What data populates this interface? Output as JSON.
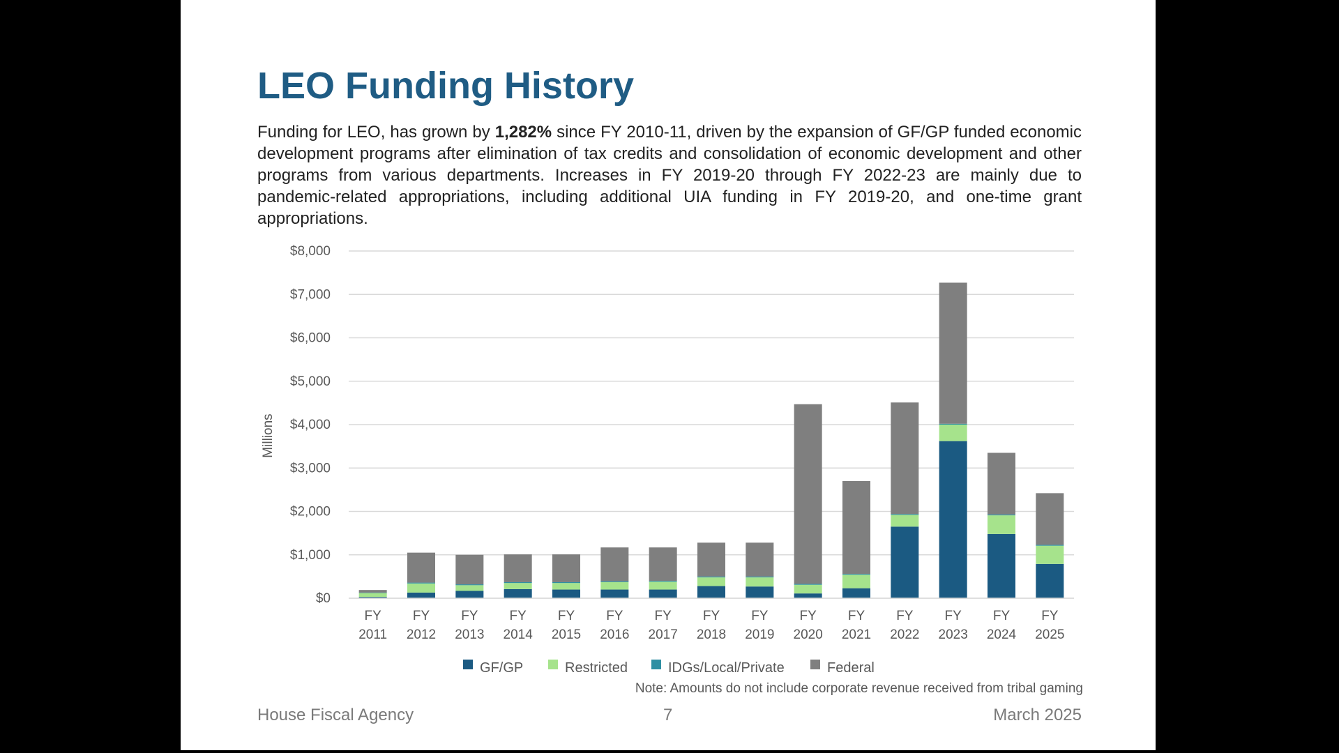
{
  "slide": {
    "title": "LEO Funding History",
    "intro_before": "Funding for LEO, has grown by ",
    "intro_bold": "1,282%",
    "intro_after": " since FY 2010-11, driven by the expansion of GF/GP funded economic development programs after elimination of tax credits and consolidation of economic development and other programs from various departments.  Increases in FY 2019-20 through FY 2022-23 are mainly due to pandemic-related appropriations, including additional UIA funding in FY 2019-20, and one-time grant appropriations.",
    "note": "Note: Amounts do not include corporate revenue received from tribal gaming",
    "footer_left": "House Fiscal Agency",
    "footer_center": "7",
    "footer_right": "March 2025"
  },
  "chart_data": {
    "type": "bar",
    "stacked": true,
    "categories": [
      "FY 2011",
      "FY 2012",
      "FY 2013",
      "FY 2014",
      "FY 2015",
      "FY 2016",
      "FY 2017",
      "FY 2018",
      "FY 2019",
      "FY 2020",
      "FY 2021",
      "FY 2022",
      "FY 2023",
      "FY 2024",
      "FY 2025"
    ],
    "series": [
      {
        "name": "GF/GP",
        "color": "#1b5a82",
        "values": [
          30,
          130,
          170,
          210,
          200,
          200,
          200,
          280,
          270,
          110,
          230,
          1650,
          3620,
          1480,
          790
        ]
      },
      {
        "name": "Restricted",
        "color": "#a6e38c",
        "values": [
          90,
          210,
          130,
          140,
          150,
          170,
          180,
          200,
          210,
          200,
          310,
          270,
          380,
          430,
          420
        ]
      },
      {
        "name": "IDGs/Local/Private",
        "color": "#2f8fa3",
        "values": [
          10,
          20,
          20,
          20,
          20,
          20,
          20,
          20,
          20,
          20,
          20,
          20,
          20,
          20,
          20
        ]
      },
      {
        "name": "Federal",
        "color": "#7f7f7f",
        "values": [
          60,
          690,
          680,
          640,
          640,
          780,
          770,
          780,
          780,
          4140,
          2140,
          2570,
          3250,
          1420,
          1190
        ]
      }
    ],
    "ylabel": "Millions",
    "ylim": [
      0,
      8000
    ],
    "yticks": [
      0,
      1000,
      2000,
      3000,
      4000,
      5000,
      6000,
      7000,
      8000
    ],
    "ytick_labels": [
      "$0",
      "$1,000",
      "$2,000",
      "$3,000",
      "$4,000",
      "$5,000",
      "$6,000",
      "$7,000",
      "$8,000"
    ],
    "grid": true,
    "legend_position": "bottom"
  }
}
